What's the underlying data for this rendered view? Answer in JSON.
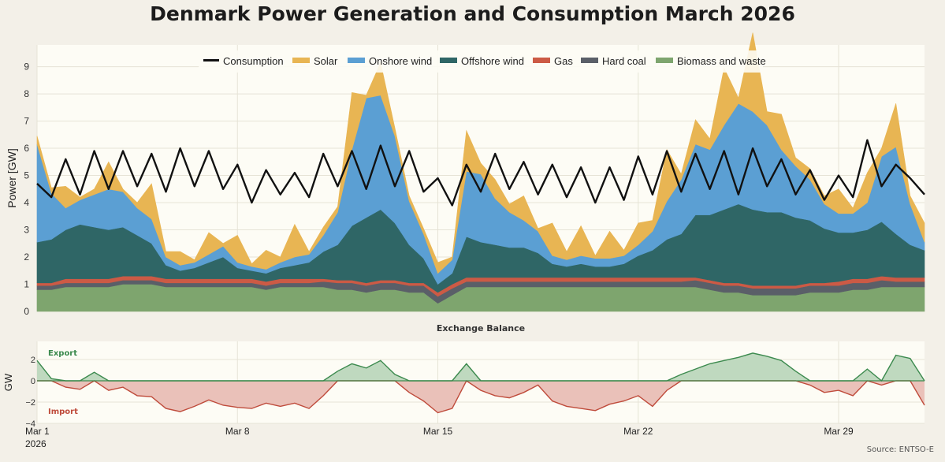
{
  "title": "Denmark Power Generation and Consumption March 2026",
  "source": "Source: ENTSO-E",
  "colors": {
    "consumption": "#111111",
    "solar": "#e8b553",
    "onshore": "#5b9fd3",
    "offshore": "#2f6666",
    "gas": "#cc5a45",
    "coal": "#5a5f68",
    "biomass": "#7ea56e",
    "export_line": "#3c8a4e",
    "export_fill": "#bfd9bf",
    "import_line": "#bf4b3b",
    "import_fill": "#eac1b9"
  },
  "chart_data": [
    {
      "type": "area",
      "title": "Denmark Power Generation and Consumption March 2026",
      "ylabel": "Power [GW]",
      "xlabel": "",
      "ylim": [
        0,
        9.8
      ],
      "yticks": [
        "0",
        "1",
        "2",
        "3",
        "4",
        "5",
        "6",
        "7",
        "8",
        "9"
      ],
      "xlim": [
        0,
        31
      ],
      "xticks": [
        {
          "x": 0,
          "label": "Mar 1",
          "sublabel": "2026"
        },
        {
          "x": 7,
          "label": "Mar 8"
        },
        {
          "x": 14,
          "label": "Mar 15"
        },
        {
          "x": 21,
          "label": "Mar 22"
        },
        {
          "x": 28,
          "label": "Mar 29"
        }
      ],
      "legend_position": "top-center",
      "legend": [
        "Consumption",
        "Solar",
        "Onshore wind",
        "Offshore wind",
        "Gas",
        "Hard coal",
        "Biomass and waste"
      ],
      "x_days": [
        0,
        0.5,
        1,
        1.5,
        2,
        2.5,
        3,
        3.5,
        4,
        4.5,
        5,
        5.5,
        6,
        6.5,
        7,
        7.5,
        8,
        8.5,
        9,
        9.5,
        10,
        10.5,
        11,
        11.5,
        12,
        12.5,
        13,
        13.5,
        14,
        14.5,
        15,
        15.5,
        16,
        16.5,
        17,
        17.5,
        18,
        18.5,
        19,
        19.5,
        20,
        20.5,
        21,
        21.5,
        22,
        22.5,
        23,
        23.5,
        24,
        24.5,
        25,
        25.5,
        26,
        26.5,
        27,
        27.5,
        28,
        28.5,
        29,
        29.5,
        30,
        30.5,
        31
      ],
      "series": [
        {
          "name": "Biomass and waste",
          "values": [
            0.8,
            0.8,
            0.9,
            0.9,
            0.9,
            0.9,
            1.0,
            1.0,
            1.0,
            0.9,
            0.9,
            0.9,
            0.9,
            0.9,
            0.9,
            0.9,
            0.8,
            0.9,
            0.9,
            0.9,
            0.9,
            0.8,
            0.8,
            0.7,
            0.8,
            0.8,
            0.7,
            0.7,
            0.3,
            0.6,
            0.9,
            0.9,
            0.9,
            0.9,
            0.9,
            0.9,
            0.9,
            0.9,
            0.9,
            0.9,
            0.9,
            0.9,
            0.9,
            0.9,
            0.9,
            0.9,
            0.9,
            0.8,
            0.7,
            0.7,
            0.6,
            0.6,
            0.6,
            0.6,
            0.7,
            0.7,
            0.7,
            0.8,
            0.8,
            0.9,
            0.9,
            0.9,
            0.9
          ]
        },
        {
          "name": "Hard coal",
          "values": [
            0.15,
            0.15,
            0.15,
            0.15,
            0.15,
            0.15,
            0.15,
            0.15,
            0.15,
            0.15,
            0.15,
            0.15,
            0.15,
            0.15,
            0.15,
            0.15,
            0.15,
            0.15,
            0.15,
            0.15,
            0.2,
            0.25,
            0.25,
            0.25,
            0.25,
            0.25,
            0.25,
            0.25,
            0.25,
            0.25,
            0.2,
            0.2,
            0.2,
            0.2,
            0.2,
            0.2,
            0.2,
            0.2,
            0.2,
            0.2,
            0.2,
            0.2,
            0.2,
            0.2,
            0.2,
            0.2,
            0.25,
            0.25,
            0.25,
            0.25,
            0.25,
            0.25,
            0.25,
            0.25,
            0.25,
            0.25,
            0.25,
            0.25,
            0.25,
            0.25,
            0.2,
            0.2,
            0.2
          ]
        },
        {
          "name": "Gas",
          "values": [
            0.1,
            0.1,
            0.15,
            0.15,
            0.15,
            0.15,
            0.15,
            0.15,
            0.15,
            0.15,
            0.15,
            0.15,
            0.15,
            0.15,
            0.15,
            0.15,
            0.15,
            0.15,
            0.15,
            0.15,
            0.1,
            0.1,
            0.1,
            0.1,
            0.1,
            0.1,
            0.1,
            0.1,
            0.15,
            0.15,
            0.15,
            0.15,
            0.15,
            0.15,
            0.15,
            0.15,
            0.15,
            0.15,
            0.15,
            0.15,
            0.15,
            0.15,
            0.15,
            0.15,
            0.15,
            0.15,
            0.1,
            0.1,
            0.1,
            0.1,
            0.1,
            0.1,
            0.1,
            0.1,
            0.1,
            0.1,
            0.15,
            0.15,
            0.15,
            0.15,
            0.15,
            0.15,
            0.15
          ]
        },
        {
          "name": "Offshore wind",
          "values": [
            1.5,
            1.6,
            1.8,
            2.0,
            1.9,
            1.8,
            1.8,
            1.5,
            1.2,
            0.5,
            0.3,
            0.4,
            0.6,
            0.8,
            0.4,
            0.3,
            0.3,
            0.4,
            0.5,
            0.6,
            1.0,
            1.3,
            2.0,
            2.4,
            2.6,
            2.1,
            1.4,
            0.9,
            0.3,
            0.4,
            1.5,
            1.3,
            1.2,
            1.1,
            1.1,
            0.9,
            0.5,
            0.4,
            0.5,
            0.4,
            0.4,
            0.5,
            0.8,
            1.0,
            1.4,
            1.6,
            2.3,
            2.4,
            2.7,
            2.9,
            2.8,
            2.7,
            2.7,
            2.5,
            2.3,
            2.0,
            1.8,
            1.7,
            1.8,
            2.0,
            1.6,
            1.2,
            1.0
          ]
        },
        {
          "name": "Onshore wind",
          "values": [
            3.6,
            1.7,
            0.8,
            0.9,
            1.2,
            1.5,
            1.3,
            1.0,
            0.9,
            0.3,
            0.2,
            0.2,
            0.3,
            0.4,
            0.2,
            0.15,
            0.15,
            0.2,
            0.3,
            0.3,
            0.6,
            1.2,
            2.8,
            4.4,
            4.2,
            3.2,
            1.6,
            0.9,
            0.4,
            0.5,
            2.4,
            2.5,
            1.7,
            1.3,
            1.0,
            0.8,
            0.3,
            0.25,
            0.3,
            0.3,
            0.3,
            0.3,
            0.4,
            0.7,
            1.4,
            2.0,
            2.6,
            2.4,
            3.1,
            3.7,
            3.6,
            3.2,
            2.3,
            1.9,
            1.5,
            0.9,
            0.7,
            0.7,
            1.0,
            2.4,
            3.2,
            1.5,
            0.3
          ]
        },
        {
          "name": "Solar",
          "values": [
            0.3,
            0.2,
            0.8,
            0.1,
            0.2,
            1.0,
            0.1,
            0.2,
            1.3,
            0.2,
            0.5,
            0.1,
            0.8,
            0.1,
            1.0,
            0.1,
            0.7,
            0.2,
            1.2,
            0.1,
            0.3,
            0.2,
            2.1,
            0.1,
            1.2,
            0.3,
            0.2,
            0.2,
            0.4,
            0.1,
            1.5,
            0.4,
            0.7,
            0.3,
            0.9,
            0.1,
            1.2,
            0.3,
            1.1,
            0.1,
            1.0,
            0.2,
            0.8,
            0.4,
            1.9,
            0.2,
            0.9,
            0.4,
            2.1,
            0.2,
            2.9,
            0.5,
            1.3,
            0.3,
            0.4,
            0.3,
            0.9,
            0.2,
            1.1,
            0.3,
            1.6,
            0.3,
            0.7
          ]
        },
        {
          "name": "Consumption",
          "values": [
            4.7,
            4.2,
            5.6,
            4.3,
            5.9,
            4.5,
            5.9,
            4.6,
            5.8,
            4.4,
            6.0,
            4.6,
            5.9,
            4.5,
            5.4,
            4.0,
            5.2,
            4.3,
            5.1,
            4.2,
            5.8,
            4.6,
            5.9,
            4.5,
            6.1,
            4.6,
            5.9,
            4.4,
            4.9,
            3.9,
            5.4,
            4.4,
            5.8,
            4.5,
            5.5,
            4.3,
            5.4,
            4.2,
            5.3,
            4.0,
            5.3,
            4.1,
            5.7,
            4.3,
            5.9,
            4.4,
            5.8,
            4.5,
            5.9,
            4.3,
            6.0,
            4.6,
            5.6,
            4.3,
            5.2,
            4.1,
            5.0,
            4.2,
            6.3,
            4.6,
            5.4,
            4.9,
            4.3
          ]
        }
      ]
    },
    {
      "type": "area",
      "title": "Exchange Balance",
      "ylabel": "GW",
      "ylim": [
        -4,
        3.7
      ],
      "yticks": [
        "-4",
        "-2",
        "0",
        "2"
      ],
      "xlim": [
        0,
        31
      ],
      "annotations": [
        "Export",
        "Import"
      ],
      "x_days": [
        0,
        0.5,
        1,
        1.5,
        2,
        2.5,
        3,
        3.5,
        4,
        4.5,
        5,
        5.5,
        6,
        6.5,
        7,
        7.5,
        8,
        8.5,
        9,
        9.5,
        10,
        10.5,
        11,
        11.5,
        12,
        12.5,
        13,
        13.5,
        14,
        14.5,
        15,
        15.5,
        16,
        16.5,
        17,
        17.5,
        18,
        18.5,
        19,
        19.5,
        20,
        20.5,
        21,
        21.5,
        22,
        22.5,
        23,
        23.5,
        24,
        24.5,
        25,
        25.5,
        26,
        26.5,
        27,
        27.5,
        28,
        28.5,
        29,
        29.5,
        30,
        30.5,
        31
      ],
      "values": [
        1.9,
        0.2,
        -0.6,
        -0.8,
        0.8,
        -0.9,
        -0.6,
        -1.4,
        -1.5,
        -2.6,
        -2.9,
        -2.4,
        -1.8,
        -2.3,
        -2.5,
        -2.6,
        -2.1,
        -2.4,
        -2.1,
        -2.6,
        -1.4,
        0.9,
        1.6,
        1.2,
        1.9,
        0.6,
        -1.1,
        -1.9,
        -3.0,
        -2.6,
        1.6,
        -0.9,
        -1.4,
        -1.6,
        -1.1,
        -0.4,
        -1.9,
        -2.4,
        -2.6,
        -2.8,
        -2.2,
        -1.9,
        -1.4,
        -2.4,
        -0.9,
        0.6,
        1.1,
        1.6,
        1.9,
        2.2,
        2.6,
        2.3,
        1.9,
        0.9,
        -0.4,
        -1.1,
        -0.9,
        -1.4,
        1.1,
        -0.4,
        2.4,
        2.1,
        -2.3
      ]
    }
  ]
}
